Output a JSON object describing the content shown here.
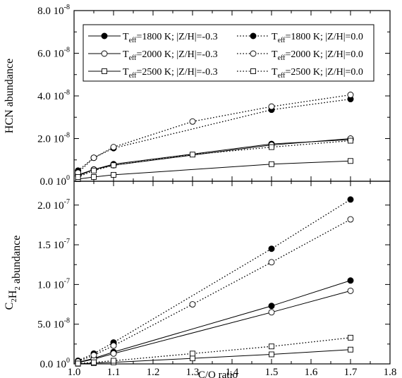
{
  "chart_data": [
    {
      "type": "line",
      "ylabel": "HCN abundance",
      "xlim": [
        1.0,
        1.8
      ],
      "ylim": [
        0,
        8e-08
      ],
      "yticks": [
        {
          "value": 0,
          "label": "0.0 10",
          "exp": "0"
        },
        {
          "value": 2e-08,
          "label": "2.0 10",
          "exp": "-8"
        },
        {
          "value": 4e-08,
          "label": "4.0 10",
          "exp": "-8"
        },
        {
          "value": 6e-08,
          "label": "6.0 10",
          "exp": "-8"
        },
        {
          "value": 8e-08,
          "label": "8.0 10",
          "exp": "-8"
        }
      ],
      "legend": {
        "placement": "top",
        "entries": [
          {
            "pre": "T",
            "sub": "eff",
            "post": "=1800 K; |Z/H|=-0.3"
          },
          {
            "pre": "T",
            "sub": "eff",
            "post": "=1800 K; |Z/H|=0.0"
          },
          {
            "pre": "T",
            "sub": "eff",
            "post": "=2000 K; |Z/H|=-0.3"
          },
          {
            "pre": "T",
            "sub": "eff",
            "post": "=2000 K; |Z/H|=0.0"
          },
          {
            "pre": "T",
            "sub": "eff",
            "post": "=2500 K; |Z/H|=-0.3"
          },
          {
            "pre": "T",
            "sub": "eff",
            "post": "=2500 K; |Z/H|=0.0"
          }
        ]
      },
      "series": [
        {
          "style": {
            "marker": "filled-circle",
            "line": "solid"
          },
          "x": [
            1.01,
            1.05,
            1.1,
            1.5,
            1.7
          ],
          "y": [
            3e-09,
            5.5e-09,
            8e-09,
            1.75e-08,
            1.95e-08
          ]
        },
        {
          "style": {
            "marker": "filled-circle",
            "line": "dotted"
          },
          "x": [
            1.01,
            1.05,
            1.1,
            1.5,
            1.7
          ],
          "y": [
            5e-09,
            1.1e-08,
            1.55e-08,
            3.35e-08,
            3.85e-08
          ]
        },
        {
          "style": {
            "marker": "open-circle",
            "line": "solid"
          },
          "x": [
            1.01,
            1.05,
            1.1,
            1.5,
            1.7
          ],
          "y": [
            2.5e-09,
            5.5e-09,
            7.5e-09,
            1.7e-08,
            2e-08
          ]
        },
        {
          "style": {
            "marker": "open-circle",
            "line": "dotted"
          },
          "x": [
            1.01,
            1.05,
            1.1,
            1.3,
            1.5,
            1.7
          ],
          "y": [
            4e-09,
            1.1e-08,
            1.6e-08,
            2.8e-08,
            3.5e-08,
            4.05e-08
          ]
        },
        {
          "style": {
            "marker": "open-square",
            "line": "solid"
          },
          "x": [
            1.01,
            1.05,
            1.1,
            1.5,
            1.7
          ],
          "y": [
            1e-09,
            2e-09,
            3e-09,
            8e-09,
            9.5e-09
          ]
        },
        {
          "style": {
            "marker": "open-square",
            "line": "dotted"
          },
          "x": [
            1.01,
            1.05,
            1.1,
            1.3,
            1.5,
            1.7
          ],
          "y": [
            2e-09,
            5e-09,
            7.5e-09,
            1.25e-08,
            1.6e-08,
            1.9e-08
          ]
        }
      ]
    },
    {
      "type": "line",
      "ylabel_parts": [
        {
          "text": "C",
          "sub": false
        },
        {
          "text": "2",
          "sub": true
        },
        {
          "text": "H",
          "sub": false
        },
        {
          "text": "2",
          "sub": true
        },
        {
          "text": " abundance",
          "sub": false
        }
      ],
      "xlabel": "C/O ratio",
      "xlim": [
        1.0,
        1.8
      ],
      "xticks": [
        "1.0",
        "1.1",
        "1.2",
        "1.3",
        "1.4",
        "1.5",
        "1.6",
        "1.7",
        "1.8"
      ],
      "ylim": [
        0,
        2.3e-07
      ],
      "yticks": [
        {
          "value": 0,
          "label": "0.0 10",
          "exp": "0"
        },
        {
          "value": 5e-08,
          "label": "5.0 10",
          "exp": "-8"
        },
        {
          "value": 1e-07,
          "label": "1.0 10",
          "exp": "-7"
        },
        {
          "value": 1.5e-07,
          "label": "1.5 10",
          "exp": "-7"
        },
        {
          "value": 2e-07,
          "label": "2.0 10",
          "exp": "-7"
        }
      ],
      "series": [
        {
          "style": {
            "marker": "filled-circle",
            "line": "solid"
          },
          "x": [
            1.01,
            1.05,
            1.1,
            1.5,
            1.7
          ],
          "y": [
            2e-09,
            7e-09,
            1.5e-08,
            7.3e-08,
            1.05e-07
          ]
        },
        {
          "style": {
            "marker": "filled-circle",
            "line": "dotted"
          },
          "x": [
            1.01,
            1.05,
            1.1,
            1.5,
            1.7
          ],
          "y": [
            4e-09,
            1.3e-08,
            2.7e-08,
            1.45e-07,
            2.07e-07
          ]
        },
        {
          "style": {
            "marker": "open-circle",
            "line": "solid"
          },
          "x": [
            1.01,
            1.05,
            1.1,
            1.5,
            1.7
          ],
          "y": [
            1.5e-09,
            6e-09,
            1.3e-08,
            6.5e-08,
            9.2e-08
          ]
        },
        {
          "style": {
            "marker": "open-circle",
            "line": "dotted"
          },
          "x": [
            1.01,
            1.05,
            1.1,
            1.3,
            1.5,
            1.7
          ],
          "y": [
            3e-09,
            1.1e-08,
            2.3e-08,
            7.5e-08,
            1.28e-07,
            1.82e-07
          ]
        },
        {
          "style": {
            "marker": "open-square",
            "line": "solid"
          },
          "x": [
            1.01,
            1.05,
            1.1,
            1.3,
            1.5,
            1.7
          ],
          "y": [
            2e-10,
            1e-09,
            2e-09,
            7e-09,
            1.2e-08,
            1.8e-08
          ]
        },
        {
          "style": {
            "marker": "open-square",
            "line": "dotted"
          },
          "x": [
            1.01,
            1.05,
            1.1,
            1.3,
            1.5,
            1.7
          ],
          "y": [
            5e-10,
            2e-09,
            4e-09,
            1.3e-08,
            2.2e-08,
            3.3e-08
          ]
        }
      ]
    }
  ]
}
